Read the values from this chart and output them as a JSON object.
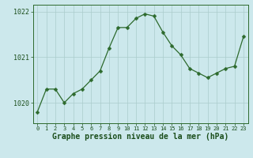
{
  "x": [
    0,
    1,
    2,
    3,
    4,
    5,
    6,
    7,
    8,
    9,
    10,
    11,
    12,
    13,
    14,
    15,
    16,
    17,
    18,
    19,
    20,
    21,
    22,
    23
  ],
  "y": [
    1019.8,
    1020.3,
    1020.3,
    1020.0,
    1020.2,
    1020.3,
    1020.5,
    1020.7,
    1021.2,
    1021.65,
    1021.65,
    1021.85,
    1021.95,
    1021.9,
    1021.55,
    1021.25,
    1021.05,
    1020.75,
    1020.65,
    1020.55,
    1020.65,
    1020.75,
    1020.8,
    1021.45
  ],
  "line_color": "#2d6a2d",
  "marker": "D",
  "marker_size": 2.5,
  "bg_color": "#cce8ec",
  "grid_color": "#aacccc",
  "axis_color": "#2d6a2d",
  "tick_color": "#1a4d1a",
  "xlabel": "Graphe pression niveau de la mer (hPa)",
  "xlabel_fontsize": 7,
  "xlabel_color": "#1a4d1a",
  "ylabel_ticks": [
    1020,
    1021,
    1022
  ],
  "ylim": [
    1019.55,
    1022.15
  ],
  "xlim": [
    -0.5,
    23.5
  ],
  "xticks": [
    0,
    1,
    2,
    3,
    4,
    5,
    6,
    7,
    8,
    9,
    10,
    11,
    12,
    13,
    14,
    15,
    16,
    17,
    18,
    19,
    20,
    21,
    22,
    23
  ],
  "xtick_labels": [
    "0",
    "1",
    "2",
    "3",
    "4",
    "5",
    "6",
    "7",
    "8",
    "9",
    "10",
    "11",
    "12",
    "13",
    "14",
    "15",
    "16",
    "17",
    "18",
    "19",
    "20",
    "21",
    "22",
    "23"
  ],
  "tick_fontsize": 5,
  "ytick_fontsize": 6
}
